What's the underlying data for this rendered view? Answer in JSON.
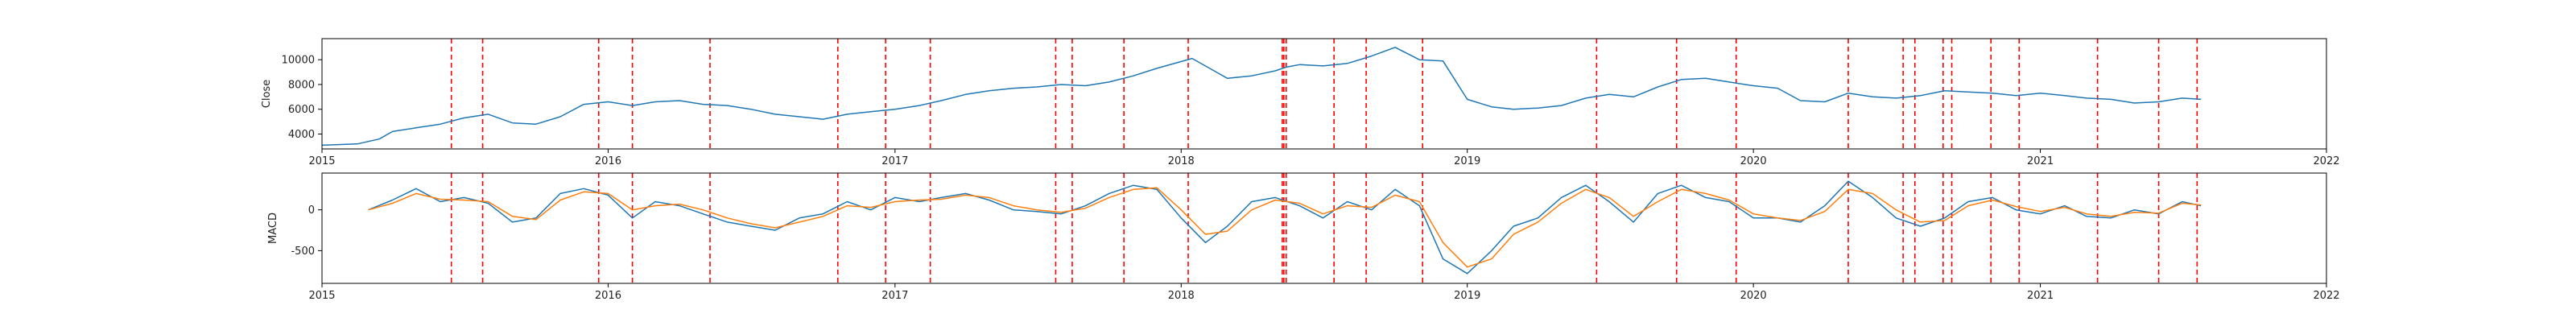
{
  "colors": {
    "price": "#1f77b4",
    "macd": "#1f77b4",
    "signal": "#ff7f0e",
    "events": "#ff0000",
    "axes": "#000000"
  },
  "chart_data": [
    {
      "type": "line",
      "title": "",
      "xlabel": "",
      "ylabel": "Close",
      "xlim": [
        "2015-01-01",
        "2022-01-01"
      ],
      "ylim": [
        2800,
        11700
      ],
      "xticks": [
        "2015",
        "2016",
        "2017",
        "2018",
        "2019",
        "2020",
        "2021",
        "2022"
      ],
      "yticks": [
        4000,
        6000,
        8000,
        10000
      ],
      "grid": false,
      "legend": "none",
      "series": [
        {
          "x": [
            "2015-01-01",
            "2015-02-15",
            "2015-03-15",
            "2015-04-01",
            "2015-05-01",
            "2015-06-01",
            "2015-07-01",
            "2015-08-01",
            "2015-09-01",
            "2015-10-01",
            "2015-11-01",
            "2015-12-01",
            "2016-01-01",
            "2016-02-01",
            "2016-03-01",
            "2016-04-01",
            "2016-05-01",
            "2016-06-01",
            "2016-07-01",
            "2016-08-01",
            "2016-09-01",
            "2016-10-01",
            "2016-11-01",
            "2016-12-01",
            "2017-01-01",
            "2017-02-01",
            "2017-03-01",
            "2017-04-01",
            "2017-05-01",
            "2017-06-01",
            "2017-07-01",
            "2017-08-01",
            "2017-09-01",
            "2017-10-01",
            "2017-11-01",
            "2017-12-01",
            "2018-01-15",
            "2018-02-15",
            "2018-03-01",
            "2018-04-01",
            "2018-05-01",
            "2018-05-15",
            "2018-06-01",
            "2018-07-01",
            "2018-08-01",
            "2018-09-01",
            "2018-10-01",
            "2018-11-01",
            "2018-12-01",
            "2019-01-01",
            "2019-02-01",
            "2019-03-01",
            "2019-04-01",
            "2019-05-01",
            "2019-06-01",
            "2019-07-01",
            "2019-08-01",
            "2019-09-01",
            "2019-10-01",
            "2019-11-01",
            "2019-12-01",
            "2020-01-01",
            "2020-02-01",
            "2020-03-01",
            "2020-04-01",
            "2020-05-01",
            "2020-06-01",
            "2020-07-01",
            "2020-08-01",
            "2020-09-01",
            "2020-10-01",
            "2020-11-01",
            "2020-12-01",
            "2021-01-01",
            "2021-02-01",
            "2021-03-01",
            "2021-04-01",
            "2021-05-01",
            "2021-06-01",
            "2021-07-01",
            "2021-07-25"
          ],
          "values": [
            3100,
            3200,
            3600,
            4200,
            4500,
            4800,
            5300,
            5600,
            4900,
            4800,
            5400,
            6400,
            6600,
            6300,
            6600,
            6700,
            6400,
            6300,
            6000,
            5600,
            5400,
            5200,
            5600,
            5800,
            6000,
            6300,
            6700,
            7200,
            7500,
            7700,
            7800,
            8000,
            7900,
            8200,
            8700,
            9300,
            10100,
            9000,
            8500,
            8700,
            9100,
            9400,
            9600,
            9500,
            9700,
            10300,
            11000,
            10000,
            9900,
            6800,
            6200,
            6000,
            6100,
            6300,
            6900,
            7200,
            7000,
            7800,
            8400,
            8500,
            8200,
            7900,
            7700,
            6700,
            6600,
            7300,
            7000,
            6900,
            7100,
            7500,
            7400,
            7300,
            7100,
            7300,
            7100,
            6900,
            6800,
            6500,
            6600,
            6900,
            6800
          ]
        }
      ]
    },
    {
      "type": "line",
      "title": "",
      "xlabel": "",
      "ylabel": "MACD",
      "xlim": [
        "2015-01-01",
        "2022-01-01"
      ],
      "ylim": [
        -900,
        450
      ],
      "xticks": [
        "2015",
        "2016",
        "2017",
        "2018",
        "2019",
        "2020",
        "2021",
        "2022"
      ],
      "yticks": [
        -500,
        0
      ],
      "grid": false,
      "legend": "none",
      "series": [
        {
          "x": [
            "2015-03-01",
            "2015-04-01",
            "2015-05-01",
            "2015-06-01",
            "2015-07-01",
            "2015-08-01",
            "2015-09-01",
            "2015-10-01",
            "2015-11-01",
            "2015-12-01",
            "2016-01-01",
            "2016-02-01",
            "2016-03-01",
            "2016-04-01",
            "2016-05-01",
            "2016-06-01",
            "2016-07-01",
            "2016-08-01",
            "2016-09-01",
            "2016-10-01",
            "2016-11-01",
            "2016-12-01",
            "2017-01-01",
            "2017-02-01",
            "2017-03-01",
            "2017-04-01",
            "2017-05-01",
            "2017-06-01",
            "2017-07-01",
            "2017-08-01",
            "2017-09-01",
            "2017-10-01",
            "2017-11-01",
            "2017-12-01",
            "2018-01-01",
            "2018-02-01",
            "2018-03-01",
            "2018-04-01",
            "2018-05-01",
            "2018-06-01",
            "2018-07-01",
            "2018-08-01",
            "2018-09-01",
            "2018-10-01",
            "2018-11-01",
            "2018-12-01",
            "2019-01-01",
            "2019-02-01",
            "2019-03-01",
            "2019-04-01",
            "2019-05-01",
            "2019-06-01",
            "2019-07-01",
            "2019-08-01",
            "2019-09-01",
            "2019-10-01",
            "2019-11-01",
            "2019-12-01",
            "2020-01-01",
            "2020-02-01",
            "2020-03-01",
            "2020-04-01",
            "2020-05-01",
            "2020-06-01",
            "2020-07-01",
            "2020-08-01",
            "2020-09-01",
            "2020-10-01",
            "2020-11-01",
            "2020-12-01",
            "2021-01-01",
            "2021-02-01",
            "2021-03-01",
            "2021-04-01",
            "2021-05-01",
            "2021-06-01",
            "2021-07-01",
            "2021-07-25"
          ],
          "values": [
            0,
            120,
            260,
            100,
            150,
            80,
            -150,
            -100,
            200,
            260,
            180,
            -100,
            100,
            50,
            -50,
            -150,
            -200,
            -250,
            -100,
            -50,
            100,
            0,
            150,
            100,
            150,
            200,
            120,
            0,
            -20,
            -50,
            50,
            200,
            300,
            250,
            -100,
            -400,
            -200,
            100,
            150,
            50,
            -100,
            100,
            0,
            250,
            50,
            -600,
            -780,
            -500,
            -200,
            -100,
            150,
            300,
            100,
            -150,
            200,
            300,
            150,
            100,
            -100,
            -100,
            -150,
            50,
            350,
            150,
            -100,
            -200,
            -100,
            100,
            150,
            0,
            -50,
            50,
            -80,
            -100,
            0,
            -50,
            100,
            50
          ]
        },
        {
          "x": [
            "2015-03-01",
            "2015-04-01",
            "2015-05-01",
            "2015-06-01",
            "2015-07-01",
            "2015-08-01",
            "2015-09-01",
            "2015-10-01",
            "2015-11-01",
            "2015-12-01",
            "2016-01-01",
            "2016-02-01",
            "2016-03-01",
            "2016-04-01",
            "2016-05-01",
            "2016-06-01",
            "2016-07-01",
            "2016-08-01",
            "2016-09-01",
            "2016-10-01",
            "2016-11-01",
            "2016-12-01",
            "2017-01-01",
            "2017-02-01",
            "2017-03-01",
            "2017-04-01",
            "2017-05-01",
            "2017-06-01",
            "2017-07-01",
            "2017-08-01",
            "2017-09-01",
            "2017-10-01",
            "2017-11-01",
            "2017-12-01",
            "2018-01-01",
            "2018-02-01",
            "2018-03-01",
            "2018-04-01",
            "2018-05-01",
            "2018-06-01",
            "2018-07-01",
            "2018-08-01",
            "2018-09-01",
            "2018-10-01",
            "2018-11-01",
            "2018-12-01",
            "2019-01-01",
            "2019-02-01",
            "2019-03-01",
            "2019-04-01",
            "2019-05-01",
            "2019-06-01",
            "2019-07-01",
            "2019-08-01",
            "2019-09-01",
            "2019-10-01",
            "2019-11-01",
            "2019-12-01",
            "2020-01-01",
            "2020-02-01",
            "2020-03-01",
            "2020-04-01",
            "2020-05-01",
            "2020-06-01",
            "2020-07-01",
            "2020-08-01",
            "2020-09-01",
            "2020-10-01",
            "2020-11-01",
            "2020-12-01",
            "2021-01-01",
            "2021-02-01",
            "2021-03-01",
            "2021-04-01",
            "2021-05-01",
            "2021-06-01",
            "2021-07-01",
            "2021-07-25"
          ],
          "values": [
            0,
            80,
            200,
            130,
            120,
            100,
            -80,
            -120,
            120,
            220,
            200,
            0,
            50,
            70,
            0,
            -100,
            -170,
            -220,
            -150,
            -80,
            50,
            30,
            100,
            120,
            130,
            180,
            150,
            50,
            0,
            -30,
            20,
            150,
            250,
            270,
            0,
            -300,
            -260,
            0,
            120,
            80,
            -50,
            50,
            30,
            180,
            100,
            -400,
            -700,
            -600,
            -300,
            -150,
            80,
            250,
            150,
            -80,
            100,
            250,
            200,
            120,
            -50,
            -100,
            -130,
            -20,
            250,
            200,
            0,
            -150,
            -130,
            50,
            120,
            40,
            -20,
            30,
            -50,
            -80,
            -30,
            -40,
            80,
            60
          ]
        }
      ]
    }
  ],
  "event_dates": [
    "2015-06-15",
    "2015-07-25",
    "2015-12-20",
    "2016-02-01",
    "2016-05-10",
    "2016-10-20",
    "2016-12-20",
    "2017-02-15",
    "2017-07-25",
    "2017-08-15",
    "2017-10-20",
    "2018-01-10",
    "2018-05-10",
    "2018-05-12",
    "2018-05-15",
    "2018-07-15",
    "2018-08-25",
    "2018-11-05",
    "2019-06-15",
    "2019-09-25",
    "2019-12-10",
    "2020-05-01",
    "2020-07-10",
    "2020-07-25",
    "2020-08-30",
    "2020-09-10",
    "2020-10-30",
    "2020-12-05",
    "2021-03-15",
    "2021-06-01",
    "2021-07-20"
  ]
}
